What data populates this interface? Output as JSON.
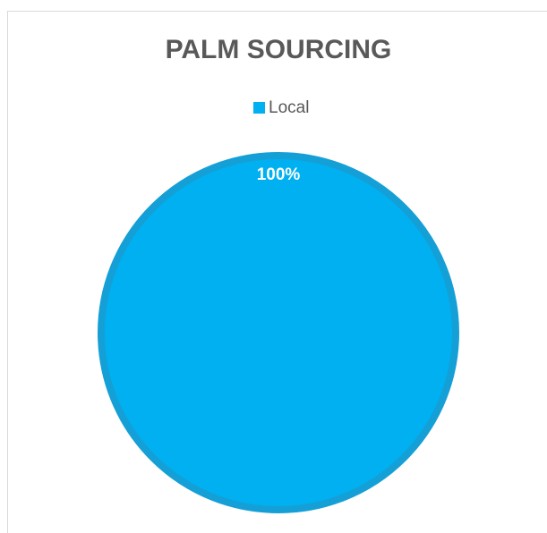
{
  "chart_data": {
    "type": "pie",
    "title": "PALM SOURCING",
    "categories": [
      "Local"
    ],
    "values": [
      100
    ],
    "value_labels": [
      "100%"
    ],
    "colors": [
      "#00b0f0"
    ],
    "legend": "top"
  }
}
